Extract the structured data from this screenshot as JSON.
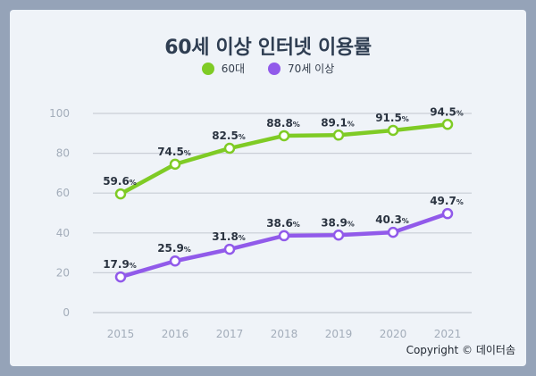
{
  "colors": {
    "background": "#95a3b8",
    "card": "#eff3f8",
    "series_60s": "#7fcb25",
    "series_70s": "#915aea",
    "grid": "#c9ced6",
    "axis_text": "#a3adba"
  },
  "copyright": "Copyright © 데이터솜",
  "chart_data": {
    "type": "line",
    "title": "60세 이상 인터넷 이용률",
    "xlabel": "",
    "ylabel": "",
    "x": [
      2015,
      2016,
      2017,
      2018,
      2019,
      2020,
      2021
    ],
    "x_labels": [
      "2015",
      "2016",
      "2017",
      "2018",
      "2019",
      "2020",
      "2021"
    ],
    "ylim": [
      0,
      100
    ],
    "y_ticks": [
      0,
      20,
      40,
      60,
      80,
      100
    ],
    "grid": true,
    "legend_position": "top-center",
    "value_unit": "%",
    "series": [
      {
        "name": "60대",
        "color": "#7fcb25",
        "values": [
          59.6,
          74.5,
          82.5,
          88.8,
          89.1,
          91.5,
          94.5
        ]
      },
      {
        "name": "70세 이상",
        "color": "#915aea",
        "values": [
          17.9,
          25.9,
          31.8,
          38.6,
          38.9,
          40.3,
          49.7
        ]
      }
    ]
  }
}
